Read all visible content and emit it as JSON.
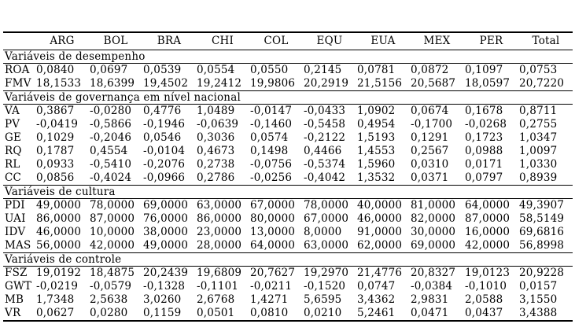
{
  "table": {
    "columns": [
      "",
      "ARG",
      "BOL",
      "BRA",
      "CHI",
      "COL",
      "EQU",
      "EUA",
      "MEX",
      "PER",
      "Total"
    ],
    "sections": [
      {
        "title": "Variáveis de desempenho",
        "rows": [
          {
            "label": "ROA",
            "values": [
              "0,0840",
              "0,0697",
              "0,0539",
              "0,0554",
              "0,0550",
              "0,2145",
              "0,0781",
              "0,0872",
              "0,1097",
              "0,0753"
            ]
          },
          {
            "label": "FMV",
            "values": [
              "18,1533",
              "18,6399",
              "19,4502",
              "19,2412",
              "19,9806",
              "20,2919",
              "21,5156",
              "20,5687",
              "18,0597",
              "20,7220"
            ]
          }
        ]
      },
      {
        "title": "Variáveis de governança em nível nacional",
        "rows": [
          {
            "label": "VA",
            "values": [
              "0,3867",
              "-0,0280",
              "0,4776",
              "1,0489",
              "-0,0147",
              "-0,0433",
              "1,0902",
              "0,0674",
              "0,1678",
              "0,8711"
            ]
          },
          {
            "label": "PV",
            "values": [
              "-0,0419",
              "-0,5866",
              "-0,1946",
              "-0,0639",
              "-0,1460",
              "-0,5458",
              "0,4954",
              "-0,1700",
              "-0,0268",
              "0,2755"
            ]
          },
          {
            "label": "GE",
            "values": [
              "0,1029",
              "-0,2046",
              "0,0546",
              "0,3036",
              "0,0574",
              "-0,2122",
              "1,5193",
              "0,1291",
              "0,1723",
              "1,0347"
            ]
          },
          {
            "label": "RQ",
            "values": [
              "0,1787",
              "0,4554",
              "-0,0104",
              "0,4673",
              "0,1498",
              "0,4466",
              "1,4553",
              "0,2567",
              "0,0988",
              "1,0097"
            ]
          },
          {
            "label": "RL",
            "values": [
              "0,0933",
              "-0,5410",
              "-0,2076",
              "0,2738",
              "-0,0756",
              "-0,5374",
              "1,5960",
              "0,0310",
              "0,0171",
              "1,0330"
            ]
          },
          {
            "label": "CC",
            "values": [
              "0,0856",
              "-0,4024",
              "-0,0966",
              "0,2786",
              "-0,0256",
              "-0,4042",
              "1,3532",
              "0,0371",
              "0,0797",
              "0,8939"
            ]
          }
        ]
      },
      {
        "title": "Variáveis de cultura",
        "rows": [
          {
            "label": "PDI",
            "values": [
              "49,0000",
              "78,0000",
              "69,0000",
              "63,0000",
              "67,0000",
              "78,0000",
              "40,0000",
              "81,0000",
              "64,0000",
              "49,3907"
            ]
          },
          {
            "label": "UAI",
            "values": [
              "86,0000",
              "87,0000",
              "76,0000",
              "86,0000",
              "80,0000",
              "67,0000",
              "46,0000",
              "82,0000",
              "87,0000",
              "58,5149"
            ]
          },
          {
            "label": "IDV",
            "values": [
              "46,0000",
              "10,0000",
              "38,0000",
              "23,0000",
              "13,0000",
              "8,0000",
              "91,0000",
              "30,0000",
              "16,0000",
              "69,6816"
            ]
          },
          {
            "label": "MAS",
            "values": [
              "56,0000",
              "42,0000",
              "49,0000",
              "28,0000",
              "64,0000",
              "63,0000",
              "62,0000",
              "69,0000",
              "42,0000",
              "56,8998"
            ]
          }
        ]
      },
      {
        "title": "Variáveis de controle",
        "rows": [
          {
            "label": "FSZ",
            "values": [
              "19,0192",
              "18,4875",
              "20,2439",
              "19,6809",
              "20,7627",
              "19,2970",
              "21,4776",
              "20,8327",
              "19,0123",
              "20,9228"
            ]
          },
          {
            "label": "GWT",
            "values": [
              "-0,0219",
              "-0,0579",
              "-0,1328",
              "-0,1101",
              "-0,0211",
              "-0,1520",
              "0,0747",
              "-0,0384",
              "-0,1010",
              "0,0157"
            ]
          },
          {
            "label": "MB",
            "values": [
              "1,7348",
              "2,5638",
              "3,0260",
              "2,6768",
              "1,4271",
              "5,6595",
              "3,4362",
              "2,9831",
              "2,0588",
              "3,1550"
            ]
          },
          {
            "label": "VR",
            "values": [
              "0,0627",
              "0,0280",
              "0,1159",
              "0,0501",
              "0,0810",
              "0,0210",
              "5,2461",
              "0,0471",
              "0,0437",
              "3,4388"
            ]
          }
        ]
      }
    ]
  }
}
